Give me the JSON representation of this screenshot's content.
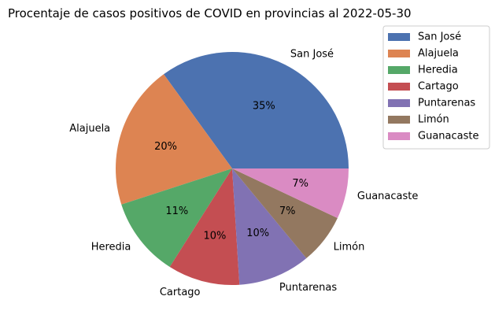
{
  "chart_data": {
    "type": "pie",
    "title": "Procentaje de casos positivos de COVID en provincias al 2022-05-30",
    "categories": [
      "San José",
      "Alajuela",
      "Heredia",
      "Cartago",
      "Puntarenas",
      "Limón",
      "Guanacaste"
    ],
    "values": [
      35,
      20,
      11,
      10,
      10,
      7,
      7
    ],
    "percent_labels": [
      "35%",
      "20%",
      "11%",
      "10%",
      "10%",
      "7%",
      "7%"
    ],
    "colors": [
      "#4c72b0",
      "#dd8452",
      "#55a868",
      "#c44e52",
      "#8172b3",
      "#937860",
      "#da8bc3"
    ],
    "legend_position": "upper-right-outside",
    "start_angle_deg": 0,
    "direction": "counterclockwise"
  }
}
